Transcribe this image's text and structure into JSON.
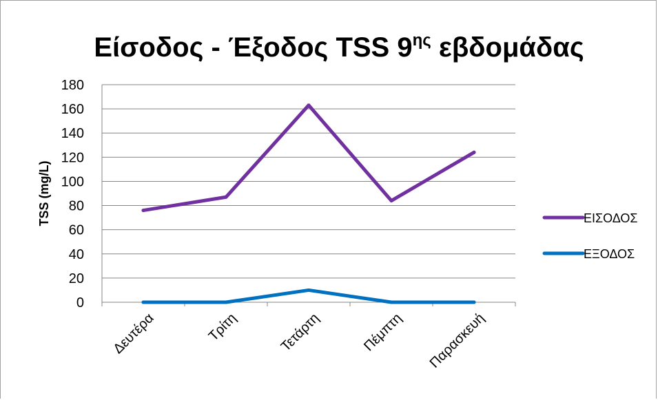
{
  "chart_data": {
    "type": "line",
    "title": {
      "main": "Είσοδος - Έξοδος TSS 9",
      "superscript": "ης",
      "suffix": " εβδομάδας"
    },
    "xlabel": "",
    "ylabel": "TSS (mg/L)",
    "categories": [
      "Δευτέρα",
      "Τρίτη",
      "Τετάρτη",
      "Πέμπτη",
      "Παρασκευή"
    ],
    "yticks": [
      "0",
      "20",
      "40",
      "60",
      "80",
      "100",
      "120",
      "140",
      "160",
      "180"
    ],
    "ylim": [
      0,
      180
    ],
    "grid": true,
    "legend_position": "right",
    "series": [
      {
        "name": "ΕΙΣΟΔΟΣ",
        "color": "#7030a0",
        "values": [
          76,
          87,
          163,
          84,
          124
        ]
      },
      {
        "name": "ΕΞΟΔΟΣ",
        "color": "#0070c0",
        "values": [
          0,
          0,
          10,
          0,
          0
        ]
      }
    ]
  }
}
